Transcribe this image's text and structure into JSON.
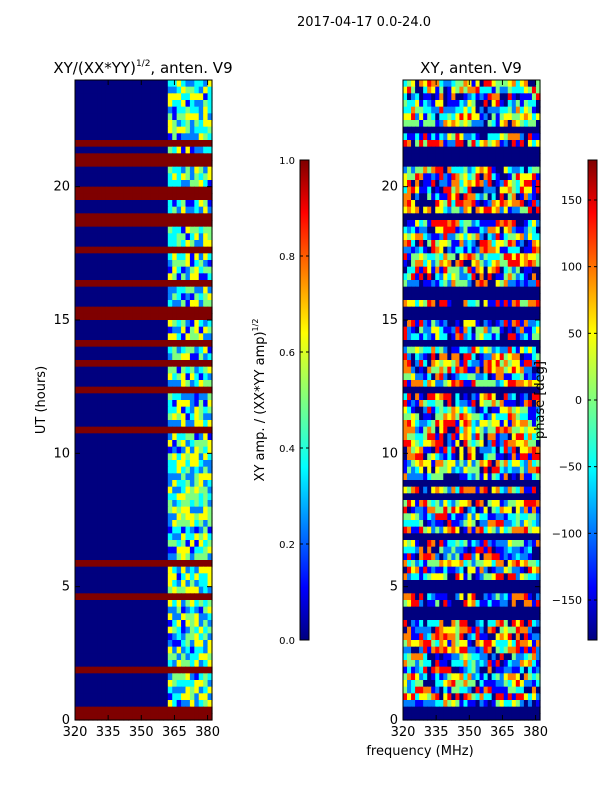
{
  "suptitle": "2017-04-17 0.0-24.0",
  "colors": {
    "background": "#ffffff",
    "jet": [
      "#00007f",
      "#0000ff",
      "#007fff",
      "#00ffff",
      "#7fff7f",
      "#ffff00",
      "#ff7f00",
      "#ff0000",
      "#7f0000"
    ]
  },
  "chart_data": [
    {
      "id": "amplitude-ratio",
      "type": "heatmap",
      "title": "XY/(XX*YY)",
      "title_sup": "1/2",
      "title_suffix": ", anten. V9",
      "ylabel": "UT (hours)",
      "xlabel": "",
      "xlim": [
        320,
        382
      ],
      "ylim": [
        0,
        24
      ],
      "xticks": [
        320,
        335,
        350,
        365,
        380
      ],
      "yticks": [
        0,
        5,
        10,
        15,
        20
      ],
      "colorbar": {
        "label": "XY amp. / (XX*YY amp)",
        "label_sup": "1/2",
        "range": [
          0.0,
          1.0
        ],
        "ticks": [
          "0.0",
          "0.2",
          "0.4",
          "0.6",
          "0.8",
          "1.0"
        ]
      },
      "flagged_hour_bands": [
        [
          0.0,
          0.4
        ],
        [
          15.0,
          15.5
        ],
        [
          20.8,
          21.2
        ],
        [
          18.5,
          18.7
        ],
        [
          19.5,
          19.7
        ]
      ],
      "bright_channel_bands_mhz": [
        [
          362,
          366
        ],
        [
          367,
          371
        ],
        [
          372,
          375
        ],
        [
          376,
          381
        ]
      ]
    },
    {
      "id": "phase",
      "type": "heatmap",
      "title": "XY, anten. V9",
      "ylabel": "",
      "xlabel": "frequency (MHz)",
      "xlim": [
        320,
        382
      ],
      "ylim": [
        0,
        24
      ],
      "xticks": [
        320,
        335,
        350,
        365,
        380
      ],
      "yticks": [
        0,
        5,
        10,
        15,
        20
      ],
      "colorbar": {
        "label": "phase [deg]",
        "range": [
          -180,
          180
        ],
        "ticks": [
          "150",
          "100",
          "50",
          "0",
          "−50",
          "−100",
          "−150"
        ]
      },
      "flagged_hour_bands": [
        [
          0.0,
          0.4
        ],
        [
          15.0,
          15.5
        ],
        [
          20.8,
          21.2
        ],
        [
          8.8,
          9.0
        ],
        [
          6.8,
          7.0
        ]
      ]
    }
  ]
}
